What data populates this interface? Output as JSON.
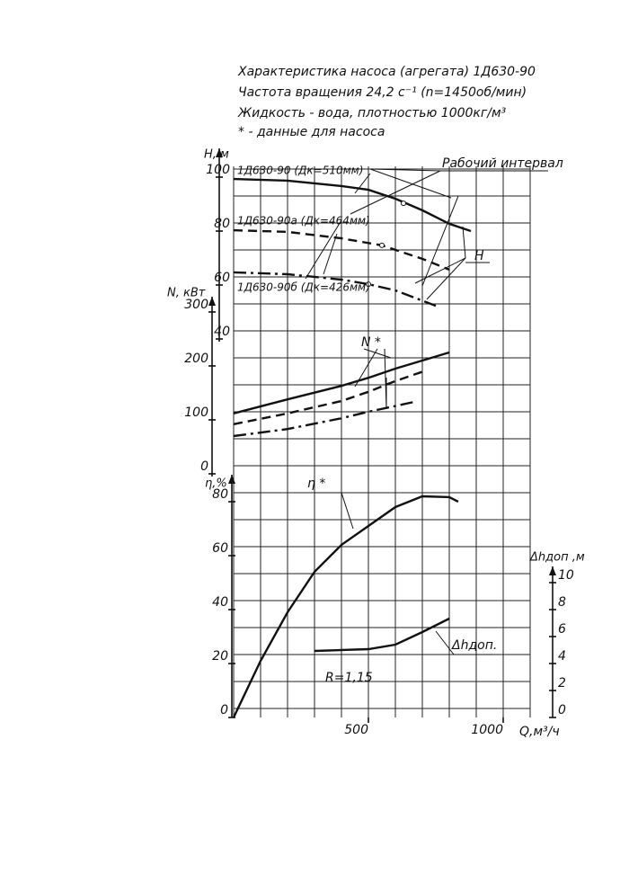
{
  "chart_data": [
    {
      "type": "line",
      "title": "Характеристика насоса (агрегата) 1Д630-90",
      "subtitles": [
        "Частота вращения 24,2 с⁻¹ (n=1450об/мин)",
        "Жидкость - вода, плотностью 1000кг/м³",
        "* - данные для насоса"
      ],
      "ylabel": "H, м",
      "xlim": [
        0,
        1100
      ],
      "ylim": [
        40,
        105
      ],
      "yticks": [
        40,
        60,
        80,
        100
      ],
      "annotations": [
        "Рабочий интервал",
        "H"
      ],
      "series": [
        {
          "name": "1Д630-90 (Дк=510мм)",
          "color": "#111111",
          "dash": "solid",
          "x": [
            0,
            200,
            400,
            500,
            600,
            700,
            800,
            880
          ],
          "values": [
            99.3,
            98.7,
            96.7,
            95.3,
            92,
            87.7,
            82.7,
            80
          ],
          "point": [
            630,
            90.3
          ]
        },
        {
          "name": "1Д630-90а (Дк=464мм)",
          "color": "#111111",
          "dash": "dashed",
          "x": [
            0,
            200,
            400,
            550,
            700,
            800
          ],
          "values": [
            80.3,
            79.7,
            77.3,
            74.7,
            69.7,
            65.7
          ],
          "point": [
            550,
            74.7
          ]
        },
        {
          "name": "1Д630-90б (Дк=426мм)",
          "color": "#111111",
          "dash": "dashdot",
          "x": [
            0,
            200,
            400,
            500,
            600,
            750
          ],
          "values": [
            64.7,
            64,
            62,
            60.3,
            58,
            52.3
          ],
          "point": [
            500,
            60.3
          ]
        }
      ]
    },
    {
      "type": "line",
      "ylabel": "N, кВт",
      "xlim": [
        0,
        1100
      ],
      "ylim": [
        0,
        320
      ],
      "yticks": [
        0,
        100,
        200,
        300
      ],
      "annotations": [
        "N *"
      ],
      "series": [
        {
          "color": "#111111",
          "dash": "solid",
          "x": [
            0,
            200,
            400,
            500,
            600,
            700,
            800
          ],
          "values": [
            112,
            138,
            163,
            178,
            195,
            210,
            225
          ]
        },
        {
          "color": "#111111",
          "dash": "dashed",
          "x": [
            0,
            200,
            400,
            500,
            600,
            717
          ],
          "values": [
            92,
            112,
            135,
            152,
            172,
            192
          ]
        },
        {
          "color": "#111111",
          "dash": "dashdot",
          "x": [
            0,
            200,
            400,
            500,
            667
          ],
          "values": [
            70,
            83,
            103,
            115,
            133
          ]
        }
      ]
    },
    {
      "type": "line",
      "ylabel": "η,%",
      "xlabel": "Q,м³/ч",
      "xlim": [
        0,
        1100
      ],
      "xticks": [
        500,
        1000
      ],
      "ylim": [
        0,
        85
      ],
      "yticks": [
        0,
        20,
        40,
        60,
        80
      ],
      "annotations": [
        "η *",
        "R=1,15"
      ],
      "series": [
        {
          "color": "#111111",
          "dash": "solid",
          "x": [
            0,
            100,
            200,
            300,
            400,
            500,
            600,
            700,
            800,
            833
          ],
          "values": [
            0,
            21,
            39,
            54,
            64,
            71,
            78,
            82,
            81.7,
            80
          ]
        }
      ]
    },
    {
      "type": "line",
      "ylabel": "Δhдоп ,м",
      "xlim": [
        0,
        1100
      ],
      "ylim": [
        0,
        10.5
      ],
      "yticks": [
        0,
        2,
        4,
        6,
        8,
        10
      ],
      "annotations": [
        "Δhдоп."
      ],
      "series": [
        {
          "color": "#111111",
          "dash": "solid",
          "x": [
            300,
            500,
            600,
            700,
            800
          ],
          "values": [
            4.93,
            5.07,
            5.4,
            6.33,
            7.33
          ]
        }
      ]
    }
  ]
}
